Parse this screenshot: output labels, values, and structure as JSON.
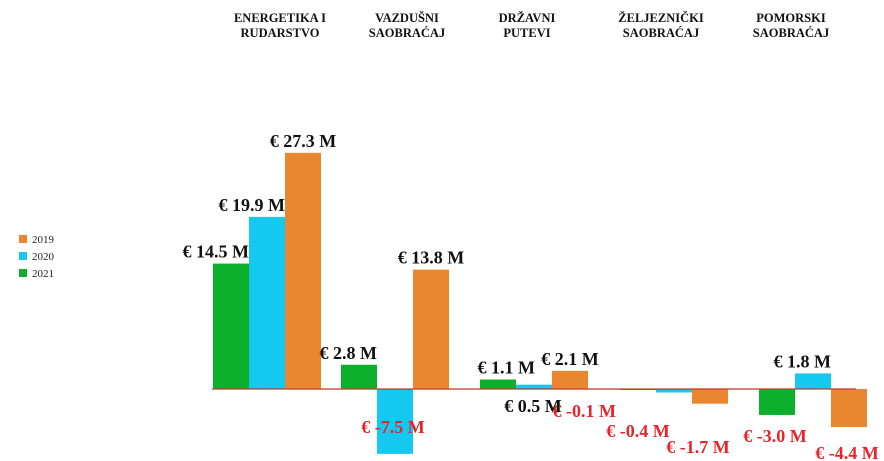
{
  "chart_data": {
    "type": "bar",
    "categories": [
      [
        "ENERGETIKA I",
        "RUDARSTVO"
      ],
      [
        "VAZDUŠNI",
        "SAOBRAĆAJ"
      ],
      [
        "DRŽAVNI",
        "PUTEVI"
      ],
      [
        "ŽELJEZNIČKI",
        "SAOBRAĆAJ"
      ],
      [
        "POMORSKI",
        "SAOBRAĆAJ"
      ]
    ],
    "series": [
      {
        "name": "2021",
        "color": "#0db02b",
        "values": [
          14.5,
          2.8,
          1.1,
          -0.1,
          -3.0
        ],
        "labels": [
          "€ 14.5 M",
          "€ 2.8 M",
          "€ 1.1 M",
          "€ -0.1 M",
          "€ -3.0 M"
        ]
      },
      {
        "name": "2020",
        "color": "#14c8f0",
        "values": [
          19.9,
          -7.5,
          0.5,
          -0.4,
          1.8
        ],
        "labels": [
          "€ 19.9 M",
          "€ -7.5 M",
          "€ 0.5 M",
          "€ -0.4 M",
          "€ 1.8 M"
        ]
      },
      {
        "name": "2019",
        "color": "#ea8530",
        "values": [
          27.3,
          13.8,
          2.1,
          -1.7,
          -4.4
        ],
        "labels": [
          "€ 27.3 M",
          "€ 13.8 M",
          "€ 2.1 M",
          "€ -1.7 M",
          "€ -4.4 M"
        ]
      }
    ],
    "legend": {
      "position": "left",
      "order": [
        "2019",
        "2020",
        "2021"
      ]
    },
    "negative_label_color": "#e8242a",
    "positive_label_color": "#111111",
    "baseline_color": "#c0392b",
    "grid": false
  }
}
